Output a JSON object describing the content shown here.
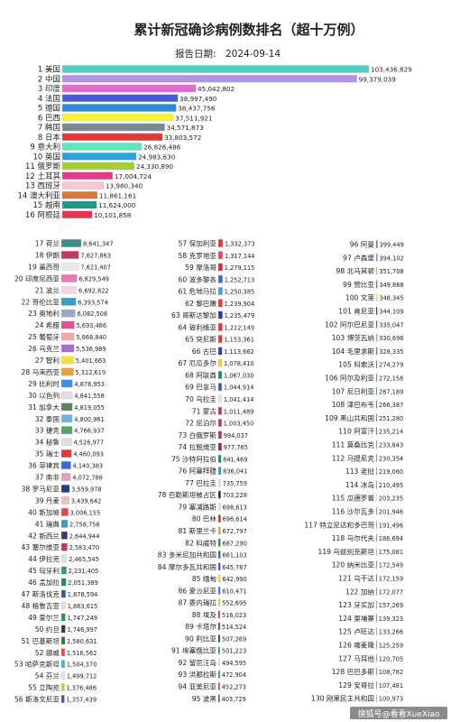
{
  "chart_data": {
    "type": "bar",
    "title": "累计新冠确诊病例数排名（超十万例）",
    "date_label": "报告日期:",
    "date": "2024-09-14",
    "watermark": "搜狐号@看看XueXiao",
    "items": [
      {
        "rank": 1,
        "country": "美国",
        "value": 103436829,
        "color": "#4fd0c4"
      },
      {
        "rank": 2,
        "country": "中国",
        "value": 99379039,
        "color": "#b392e8"
      },
      {
        "rank": 3,
        "country": "印度",
        "value": 45042802,
        "color": "#e06ad2"
      },
      {
        "rank": 4,
        "country": "法国",
        "value": 38997490,
        "color": "#4d5bd6"
      },
      {
        "rank": 5,
        "country": "德国",
        "value": 38437756,
        "color": "#2e8ad6"
      },
      {
        "rank": 6,
        "country": "巴西",
        "value": 37511921,
        "color": "#f2f23a"
      },
      {
        "rank": 7,
        "country": "韩国",
        "value": 34571873,
        "color": "#7a8a93"
      },
      {
        "rank": 8,
        "country": "日本",
        "value": 33803572,
        "color": "#e03a3a"
      },
      {
        "rank": 9,
        "country": "意大利",
        "value": 26826486,
        "color": "#5ee8c0"
      },
      {
        "rank": 10,
        "country": "英国",
        "value": 24983630,
        "color": "#2aa3e0"
      },
      {
        "rank": 11,
        "country": "俄罗斯",
        "value": 24330890,
        "color": "#a6cc3a"
      },
      {
        "rank": 12,
        "country": "土耳其",
        "value": 17004724,
        "color": "#e63a8a"
      },
      {
        "rank": 13,
        "country": "西班牙",
        "value": 13980340,
        "color": "#f5c6d2"
      },
      {
        "rank": 14,
        "country": "澳大利亚",
        "value": 11861161,
        "color": "#d97a3a"
      },
      {
        "rank": 15,
        "country": "越南",
        "value": 11624000,
        "color": "#21998a"
      },
      {
        "rank": 16,
        "country": "阿根廷",
        "value": 10101858,
        "color": "#e8344a"
      },
      {
        "rank": 17,
        "country": "荷兰",
        "value": 8641347,
        "color": "#3a8f8a"
      },
      {
        "rank": 18,
        "country": "伊朗",
        "value": 7627863,
        "color": "#c23a6a"
      },
      {
        "rank": 19,
        "country": "墨西哥",
        "value": 7621407,
        "color": "#e8e8e8"
      },
      {
        "rank": 20,
        "country": "印度尼西亚",
        "value": 6829549,
        "color": "#e87ab0"
      },
      {
        "rank": 21,
        "country": "波兰",
        "value": 6692822,
        "color": "#f0d8e0"
      },
      {
        "rank": 22,
        "country": "哥伦比亚",
        "value": 6393574,
        "color": "#3aa0c8"
      },
      {
        "rank": 23,
        "country": "奥地利",
        "value": 6082508,
        "color": "#9aa8c8"
      },
      {
        "rank": 24,
        "country": "希腊",
        "value": 5693466,
        "color": "#d65a9a"
      },
      {
        "rank": 25,
        "country": "葡萄牙",
        "value": 5666840,
        "color": "#f0a8a8"
      },
      {
        "rank": 26,
        "country": "乌克兰",
        "value": 5536989,
        "color": "#a070d0"
      },
      {
        "rank": 27,
        "country": "智利",
        "value": 5401663,
        "color": "#f0e040"
      },
      {
        "rank": 28,
        "country": "马来西亚",
        "value": 5312619,
        "color": "#e8a040"
      },
      {
        "rank": 29,
        "country": "比利时",
        "value": 4876953,
        "color": "#4090e0"
      },
      {
        "rank": 30,
        "country": "以色列",
        "value": 4841558,
        "color": "#e0e0e0"
      },
      {
        "rank": 31,
        "country": "加拿大",
        "value": 4819055,
        "color": "#608060"
      },
      {
        "rank": 32,
        "country": "泰国",
        "value": 4800961,
        "color": "#70b0e0"
      },
      {
        "rank": 33,
        "country": "捷克",
        "value": 4766937,
        "color": "#5aa06a"
      },
      {
        "rank": 34,
        "country": "秘鲁",
        "value": 4526977,
        "color": "#e0e0e0"
      },
      {
        "rank": 35,
        "country": "瑞士",
        "value": 4460093,
        "color": "#e03a3a"
      },
      {
        "rank": 36,
        "country": "菲律宾",
        "value": 4140383,
        "color": "#3a6ad0"
      },
      {
        "rank": 37,
        "country": "南非",
        "value": 4072786,
        "color": "#e0a0c0"
      },
      {
        "rank": 38,
        "country": "罗马尼亚",
        "value": 3559978,
        "color": "#2a3a8a"
      },
      {
        "rank": 39,
        "country": "丹麦",
        "value": 3439642,
        "color": "#e8c0c8"
      },
      {
        "rank": 40,
        "country": "新加坡",
        "value": 3006155,
        "color": "#e04a4a"
      },
      {
        "rank": 41,
        "country": "瑞典",
        "value": 2758756,
        "color": "#3a9ac0"
      },
      {
        "rank": 42,
        "country": "新西兰",
        "value": 2644944,
        "color": "#3a3a6a"
      },
      {
        "rank": 43,
        "country": "塞尔维亚",
        "value": 2583470,
        "color": "#c03a5a"
      },
      {
        "rank": 44,
        "country": "伊拉克",
        "value": 2465545,
        "color": "#e0e0e0"
      },
      {
        "rank": 45,
        "country": "匈牙利",
        "value": 2231405,
        "color": "#3a9a5a"
      },
      {
        "rank": 46,
        "country": "孟加拉",
        "value": 2051389,
        "color": "#2a8a5a"
      },
      {
        "rank": 47,
        "country": "斯洛伐克",
        "value": 1878594,
        "color": "#3a5aa0"
      },
      {
        "rank": 48,
        "country": "格鲁吉亚",
        "value": 1863615,
        "color": "#e0e0e0"
      },
      {
        "rank": 49,
        "country": "爱尔兰",
        "value": 1747249,
        "color": "#2a9a4a"
      },
      {
        "rank": 50,
        "country": "约旦",
        "value": 1746997,
        "color": "#3a3a3a"
      },
      {
        "rank": 51,
        "country": "巴基斯坦",
        "value": 1580631,
        "color": "#2a7a3a"
      },
      {
        "rank": 52,
        "country": "挪威",
        "value": 1516562,
        "color": "#e04a4a"
      },
      {
        "rank": 53,
        "country": "哈萨克斯坦",
        "value": 1504370,
        "color": "#40b0d0"
      },
      {
        "rank": 54,
        "country": "芬兰",
        "value": 1499712,
        "color": "#e0e0f0"
      },
      {
        "rank": 55,
        "country": "立陶宛",
        "value": 1376486,
        "color": "#e0c03a"
      },
      {
        "rank": 56,
        "country": "斯洛文尼亚",
        "value": 1357439,
        "color": "#3a5ab0"
      },
      {
        "rank": 57,
        "country": "保加利亚",
        "value": 1332373,
        "color": "#e03a3a"
      },
      {
        "rank": 58,
        "country": "克罗地亚",
        "value": 1317144,
        "color": "#e04a6a"
      },
      {
        "rank": 59,
        "country": "摩洛哥",
        "value": 1279115,
        "color": "#c03a3a"
      },
      {
        "rank": 60,
        "country": "波多黎各",
        "value": 1252713,
        "color": "#3a6ad0"
      },
      {
        "rank": 61,
        "country": "危地马拉",
        "value": 1250385,
        "color": "#40a0e0"
      },
      {
        "rank": 62,
        "country": "黎巴嫩",
        "value": 1239904,
        "color": "#e03a3a"
      },
      {
        "rank": 63,
        "country": "哥斯达黎加",
        "value": 1235479,
        "color": "#2a3a9a"
      },
      {
        "rank": 64,
        "country": "玻利维亚",
        "value": 1212149,
        "color": "#e03a3a"
      },
      {
        "rank": 65,
        "country": "突尼斯",
        "value": 1153361,
        "color": "#e03a3a"
      },
      {
        "rank": 66,
        "country": "古巴",
        "value": 1113662,
        "color": "#2a4aa0"
      },
      {
        "rank": 67,
        "country": "厄瓜多尔",
        "value": 1078410,
        "color": "#f0d03a"
      },
      {
        "rank": 68,
        "country": "阿联酋",
        "value": 1067030,
        "color": "#2a8a4a"
      },
      {
        "rank": 69,
        "country": "巴拿马",
        "value": 1044914,
        "color": "#3a5ab0"
      },
      {
        "rank": 70,
        "country": "乌拉圭",
        "value": 1041414,
        "color": "#e0e0e0"
      },
      {
        "rank": 71,
        "country": "蒙古",
        "value": 1011489,
        "color": "#c03a3a"
      },
      {
        "rank": 72,
        "country": "尼泊尔",
        "value": 1003450,
        "color": "#c03a5a"
      },
      {
        "rank": 73,
        "country": "白俄罗斯",
        "value": 994037,
        "color": "#c03a3a"
      },
      {
        "rank": 74,
        "country": "拉脱维亚",
        "value": 977765,
        "color": "#9a2a3a"
      },
      {
        "rank": 75,
        "country": "沙特阿拉伯",
        "value": 841469,
        "color": "#2a8a4a"
      },
      {
        "rank": 76,
        "country": "阿塞拜疆",
        "value": 836041,
        "color": "#3a9ad0"
      },
      {
        "rank": 77,
        "country": "巴拉圭",
        "value": 735759,
        "color": "#e0e0e0"
      },
      {
        "rank": 78,
        "country": "巴勒斯坦被占区",
        "value": 703228,
        "color": "#2a2a2a"
      },
      {
        "rank": 79,
        "country": "塞浦路斯",
        "value": 698613,
        "color": "#e0e0e0"
      },
      {
        "rank": 80,
        "country": "巴林",
        "value": 696614,
        "color": "#c03a3a"
      },
      {
        "rank": 81,
        "country": "斯里兰卡",
        "value": 672797,
        "color": "#e0a03a"
      },
      {
        "rank": 82,
        "country": "科威特",
        "value": 667290,
        "color": "#2a8a4a"
      },
      {
        "rank": 83,
        "country": "多米尼加共和国",
        "value": 661103,
        "color": "#3a5ab0"
      },
      {
        "rank": 84,
        "country": "摩尔多瓦共和国",
        "value": 645787,
        "color": "#3a5ab0"
      },
      {
        "rank": 85,
        "country": "缅甸",
        "value": 642990,
        "color": "#f0d03a"
      },
      {
        "rank": 86,
        "country": "爱沙尼亚",
        "value": 610471,
        "color": "#3a7ad0"
      },
      {
        "rank": 87,
        "country": "委内瑞拉",
        "value": 552695,
        "color": "#f0d03a"
      },
      {
        "rank": 88,
        "country": "埃及",
        "value": 516023,
        "color": "#c03a3a"
      },
      {
        "rank": 89,
        "country": "卡塔尔",
        "value": 514524,
        "color": "#8a2a4a"
      },
      {
        "rank": 90,
        "country": "利比亚",
        "value": 507269,
        "color": "#2a2a2a"
      },
      {
        "rank": 91,
        "country": "埃塞俄比亚",
        "value": 501223,
        "color": "#2a9a4a"
      },
      {
        "rank": 92,
        "country": "留尼汪岛",
        "value": 494595,
        "color": "#e0e0e0"
      },
      {
        "rank": 93,
        "country": "洪都拉斯",
        "value": 472904,
        "color": "#3a6ad0"
      },
      {
        "rank": 94,
        "country": "亚美尼亚",
        "value": 452273,
        "color": "#c03a3a"
      },
      {
        "rank": 95,
        "country": "波黑",
        "value": 403729,
        "color": "#2a3a9a"
      },
      {
        "rank": 96,
        "country": "阿曼",
        "value": 399449,
        "color": "#c03a3a"
      },
      {
        "rank": 97,
        "country": "卢森堡",
        "value": 394102,
        "color": "#3a9ad0"
      },
      {
        "rank": 98,
        "country": "北马其顿",
        "value": 351708,
        "color": "#e0c03a"
      },
      {
        "rank": 99,
        "country": "赞比亚",
        "value": 349868,
        "color": "#2a8a4a"
      },
      {
        "rank": 100,
        "country": "文莱",
        "value": 348345,
        "color": "#f0d03a"
      },
      {
        "rank": 101,
        "country": "肯尼亚",
        "value": 344109,
        "color": "#2a2a2a"
      },
      {
        "rank": 102,
        "country": "阿尔巴尼亚",
        "value": 335047,
        "color": "#c03a3a"
      },
      {
        "rank": 103,
        "country": "博茨瓦纳",
        "value": 330696,
        "color": "#6ab0e0"
      },
      {
        "rank": 104,
        "country": "毛里求斯",
        "value": 328335,
        "color": "#c03a3a"
      },
      {
        "rank": 105,
        "country": "科索沃",
        "value": 274279,
        "color": "#3a5ab0"
      },
      {
        "rank": 106,
        "country": "阿尔及利亚",
        "value": 272156,
        "color": "#2a8a4a"
      },
      {
        "rank": 107,
        "country": "尼日利亚",
        "value": 267189,
        "color": "#2a8a4a"
      },
      {
        "rank": 108,
        "country": "津巴布韦",
        "value": 266387,
        "color": "#2a8a4a"
      },
      {
        "rank": 109,
        "country": "黑山共和国",
        "value": 251280,
        "color": "#c03a3a"
      },
      {
        "rank": 110,
        "country": "阿富汗",
        "value": 235214,
        "color": "#2a2a2a"
      },
      {
        "rank": 111,
        "country": "莫桑比克",
        "value": 233843,
        "color": "#2a8a4a"
      },
      {
        "rank": 112,
        "country": "马提尼克",
        "value": 230354,
        "color": "#3a5ab0"
      },
      {
        "rank": 113,
        "country": "老挝",
        "value": 219060,
        "color": "#c03a3a"
      },
      {
        "rank": 114,
        "country": "冰岛",
        "value": 210495,
        "color": "#3a5ab0"
      },
      {
        "rank": 115,
        "country": "瓜德罗普",
        "value": 203235,
        "color": "#e0e0e0"
      },
      {
        "rank": 116,
        "country": "沙尔瓦多",
        "value": 201946,
        "color": "#3a5ab0"
      },
      {
        "rank": 117,
        "country": "特立尼达和多巴哥",
        "value": 191496,
        "color": "#c03a3a"
      },
      {
        "rank": 118,
        "country": "马尔代夫",
        "value": 186694,
        "color": "#c03a3a"
      },
      {
        "rank": 119,
        "country": "乌兹别克斯坦",
        "value": 175081,
        "color": "#3a9ad0"
      },
      {
        "rank": 120,
        "country": "纳米比亚",
        "value": 172549,
        "color": "#3a5ab0"
      },
      {
        "rank": 121,
        "country": "乌干达",
        "value": 172159,
        "color": "#2a2a2a"
      },
      {
        "rank": 122,
        "country": "加纳",
        "value": 172077,
        "color": "#c03a3a"
      },
      {
        "rank": 123,
        "country": "牙买加",
        "value": 157269,
        "color": "#2a8a4a"
      },
      {
        "rank": 124,
        "country": "柬埔寨",
        "value": 139323,
        "color": "#3a5ab0"
      },
      {
        "rank": 125,
        "country": "卢旺达",
        "value": 133266,
        "color": "#3a9ad0"
      },
      {
        "rank": 126,
        "country": "喀麦隆",
        "value": 125259,
        "color": "#2a8a4a"
      },
      {
        "rank": 127,
        "country": "马耳他",
        "value": 120705,
        "color": "#c03a3a"
      },
      {
        "rank": 128,
        "country": "巴巴多斯",
        "value": 108782,
        "color": "#3a5ab0"
      },
      {
        "rank": 129,
        "country": "安哥拉",
        "value": 107481,
        "color": "#c03a3a"
      },
      {
        "rank": 130,
        "country": "刚果民主共和国",
        "value": 100973,
        "color": "#3a9ad0"
      }
    ]
  }
}
